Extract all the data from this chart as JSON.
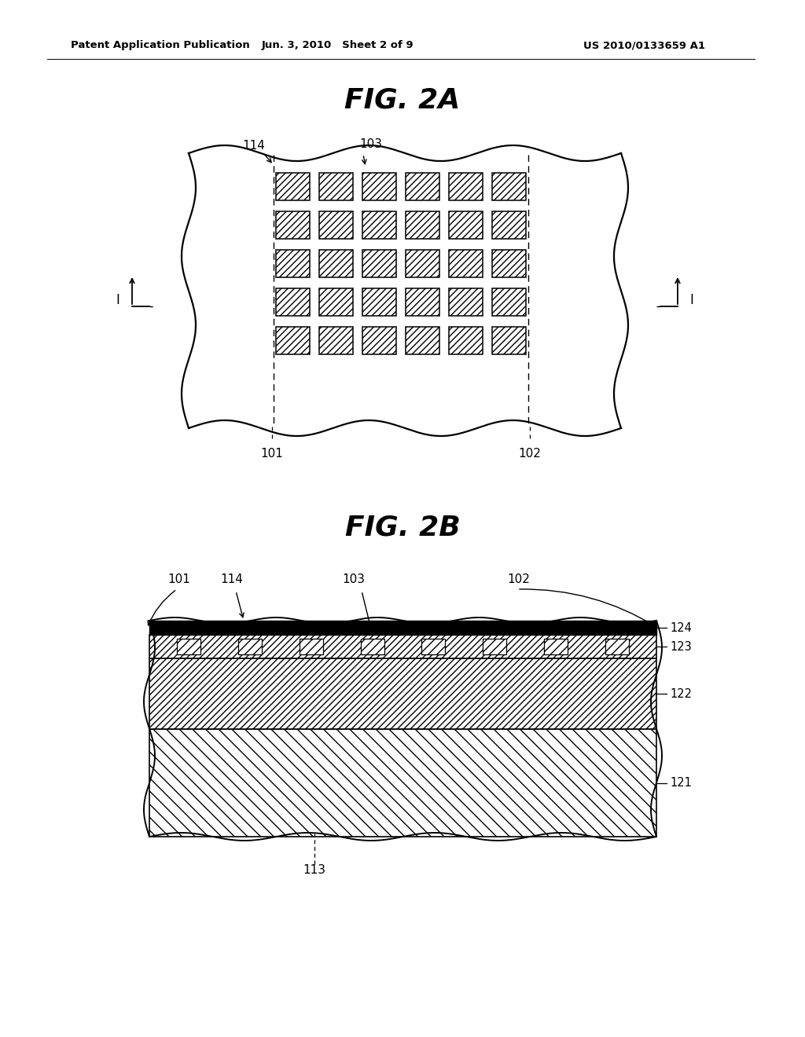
{
  "bg_color": "#ffffff",
  "header_left": "Patent Application Publication",
  "header_mid": "Jun. 3, 2010   Sheet 2 of 9",
  "header_right": "US 2010/0133659 A1",
  "fig2a_title": "FIG. 2A",
  "fig2b_title": "FIG. 2B",
  "label_114": "114",
  "label_103_2a": "103",
  "label_101_2a": "101",
  "label_102_2a": "102",
  "label_101_2b": "101",
  "label_114_2b": "114",
  "label_103_2b": "103",
  "label_102_2b": "102",
  "label_113": "113",
  "label_121": "121",
  "label_122": "122",
  "label_123": "123",
  "label_124": "124",
  "line_color": "#000000"
}
